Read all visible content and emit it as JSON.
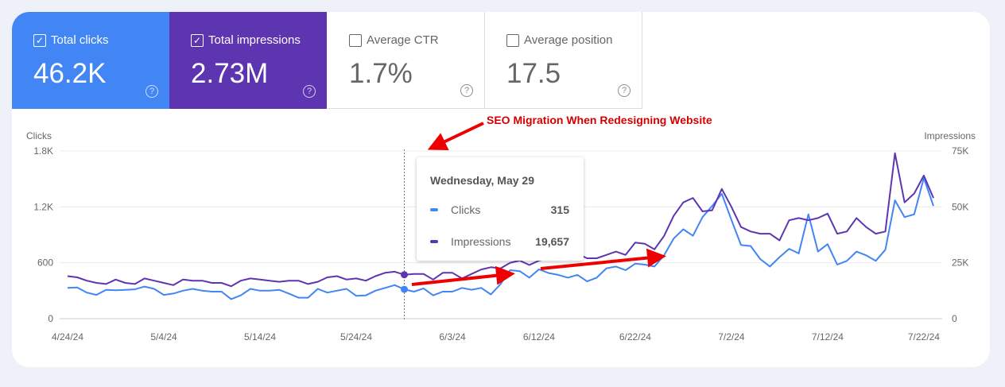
{
  "metrics": [
    {
      "label": "Total clicks",
      "value": "46.2K",
      "checked": true,
      "color": "#4285f4"
    },
    {
      "label": "Total impressions",
      "value": "2.73M",
      "checked": true,
      "color": "#5e35b1"
    },
    {
      "label": "Average CTR",
      "value": "1.7%",
      "checked": false
    },
    {
      "label": "Average position",
      "value": "17.5",
      "checked": false
    }
  ],
  "annotation": "SEO Migration When Redesigning Website",
  "tooltip": {
    "date": "Wednesday, May 29",
    "rows": [
      {
        "name": "Clicks",
        "value": "315"
      },
      {
        "name": "Impressions",
        "value": "19,657"
      }
    ]
  },
  "chart_data": {
    "type": "line",
    "left_axis_label": "Clicks",
    "right_axis_label": "Impressions",
    "left_ticks": [
      "0",
      "600",
      "1.2K",
      "1.8K"
    ],
    "left_range": [
      0,
      1800
    ],
    "right_ticks": [
      "0",
      "25K",
      "50K",
      "75K"
    ],
    "right_range": [
      0,
      75000
    ],
    "x_ticks": [
      "4/24/24",
      "5/4/24",
      "5/14/24",
      "5/24/24",
      "6/3/24",
      "6/12/24",
      "6/22/24",
      "7/2/24",
      "7/12/24",
      "7/22/24"
    ],
    "grid": true,
    "highlight_date": "5/29/24",
    "x": [
      "4/24",
      "4/25",
      "4/26",
      "4/27",
      "4/28",
      "4/29",
      "4/30",
      "5/1",
      "5/2",
      "5/3",
      "5/4",
      "5/5",
      "5/6",
      "5/7",
      "5/8",
      "5/9",
      "5/10",
      "5/11",
      "5/12",
      "5/13",
      "5/14",
      "5/15",
      "5/16",
      "5/17",
      "5/18",
      "5/19",
      "5/20",
      "5/21",
      "5/22",
      "5/23",
      "5/24",
      "5/25",
      "5/26",
      "5/27",
      "5/28",
      "5/29",
      "5/30",
      "5/31",
      "6/1",
      "6/2",
      "6/3",
      "6/4",
      "6/5",
      "6/6",
      "6/7",
      "6/8",
      "6/9",
      "6/10",
      "6/11",
      "6/12",
      "6/13",
      "6/14",
      "6/15",
      "6/16",
      "6/17",
      "6/18",
      "6/19",
      "6/20",
      "6/21",
      "6/22",
      "6/23",
      "6/24",
      "6/25",
      "6/26",
      "6/27",
      "6/28",
      "6/29",
      "6/30",
      "7/1",
      "7/2",
      "7/3",
      "7/4",
      "7/5",
      "7/6",
      "7/7",
      "7/8",
      "7/9",
      "7/10",
      "7/11",
      "7/12",
      "7/13",
      "7/14",
      "7/15",
      "7/16",
      "7/17",
      "7/18",
      "7/19",
      "7/20",
      "7/21",
      "7/22",
      "7/23"
    ],
    "series": [
      {
        "name": "Clicks",
        "color": "#4285f4",
        "axis": "left",
        "values": [
          330,
          335,
          280,
          255,
          310,
          305,
          310,
          315,
          345,
          320,
          255,
          270,
          300,
          320,
          300,
          290,
          290,
          210,
          250,
          320,
          300,
          300,
          310,
          270,
          225,
          225,
          320,
          280,
          300,
          320,
          245,
          250,
          300,
          330,
          360,
          315,
          290,
          325,
          250,
          290,
          290,
          330,
          310,
          330,
          260,
          370,
          520,
          510,
          440,
          530,
          490,
          470,
          440,
          470,
          400,
          440,
          540,
          560,
          520,
          590,
          580,
          560,
          680,
          860,
          960,
          890,
          1090,
          1210,
          1340,
          1060,
          790,
          780,
          640,
          560,
          660,
          750,
          700,
          1120,
          720,
          800,
          580,
          620,
          720,
          680,
          620,
          740,
          1270,
          1090,
          1120,
          1510,
          1210
        ]
      },
      {
        "name": "Impressions",
        "color": "#5e35b1",
        "axis": "right",
        "values": [
          19000,
          18500,
          17000,
          16000,
          15500,
          17500,
          16000,
          15500,
          18000,
          17000,
          16000,
          15000,
          17500,
          17000,
          17000,
          16000,
          16000,
          14500,
          17000,
          18000,
          17500,
          17000,
          16500,
          17000,
          17000,
          15500,
          16500,
          18500,
          19000,
          17500,
          18000,
          17000,
          19000,
          20500,
          21000,
          19657,
          20000,
          20000,
          17500,
          20500,
          20500,
          18000,
          20000,
          22000,
          23000,
          22500,
          25000,
          26000,
          24000,
          26000,
          27000,
          28000,
          27500,
          29000,
          27000,
          27000,
          28500,
          30000,
          28500,
          34000,
          33500,
          31000,
          37000,
          46000,
          52000,
          54000,
          48000,
          48500,
          58000,
          50000,
          41000,
          39000,
          38000,
          38000,
          35000,
          44000,
          45000,
          44000,
          45000,
          47000,
          38000,
          39000,
          45000,
          41000,
          38000,
          39000,
          74000,
          52000,
          56000,
          64000,
          54000
        ]
      }
    ]
  }
}
